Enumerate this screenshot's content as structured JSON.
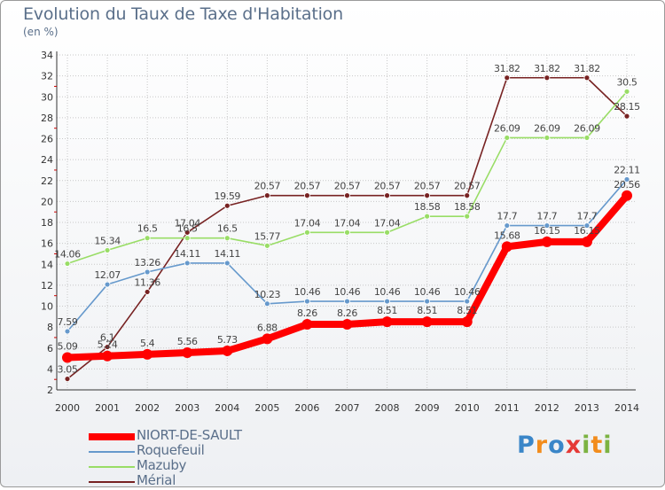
{
  "chart_data": {
    "type": "line",
    "title": "Evolution du Taux de Taxe d'Habitation",
    "ylabel": "(en %)",
    "x": [
      "2000",
      "2001",
      "2002",
      "2003",
      "2004",
      "2005",
      "2006",
      "2007",
      "2008",
      "2009",
      "2010",
      "2011",
      "2012",
      "2013",
      "2014"
    ],
    "ylim": [
      2,
      34
    ],
    "yticks": [
      2,
      4,
      6,
      8,
      10,
      12,
      14,
      16,
      18,
      20,
      22,
      24,
      26,
      28,
      30,
      32,
      34
    ],
    "grid": true,
    "legend": "bottom-left",
    "series": [
      {
        "name": "NIORT-DE-SAULT",
        "color": "#ff0000",
        "values": [
          5.09,
          5.24,
          5.4,
          5.56,
          5.73,
          6.88,
          8.26,
          8.26,
          8.51,
          8.51,
          8.51,
          15.68,
          16.15,
          16.15,
          20.56
        ],
        "labels": [
          "5.09",
          "5.24",
          "5.4",
          "5.56",
          "5.73",
          "6.88",
          "8.26",
          "8.26",
          "8.51",
          "8.51",
          "8.51",
          "15.68",
          "16.15",
          "16.15",
          "20.56"
        ]
      },
      {
        "name": "Roquefeuil",
        "color": "#6699cc",
        "values": [
          7.59,
          12.07,
          13.26,
          14.11,
          14.11,
          10.23,
          10.46,
          10.46,
          10.46,
          10.46,
          10.46,
          17.7,
          17.7,
          17.7,
          22.11
        ],
        "labels": [
          "7.59",
          "12.07",
          "13.26",
          "14.11",
          "14.11",
          "10.23",
          "10.46",
          "10.46",
          "10.46",
          "10.46",
          "10.46",
          "17.7",
          "17.7",
          "17.7",
          "22.11"
        ]
      },
      {
        "name": "Mazuby",
        "color": "#99dd66",
        "values": [
          14.06,
          15.34,
          16.5,
          16.5,
          16.5,
          15.77,
          17.04,
          17.04,
          17.04,
          18.58,
          18.58,
          26.09,
          26.09,
          26.09,
          30.5
        ],
        "labels": [
          "14.06",
          "15.34",
          "16.5",
          "16.5",
          "16.5",
          "15.77",
          "17.04",
          "17.04",
          "17.04",
          "18.58",
          "18.58",
          "26.09",
          "26.09",
          "26.09",
          "30.5"
        ]
      },
      {
        "name": "Mérial",
        "color": "#772222",
        "values": [
          3.05,
          6.1,
          11.36,
          17.04,
          19.59,
          20.57,
          20.57,
          20.57,
          20.57,
          20.57,
          20.57,
          31.82,
          31.82,
          31.82,
          28.15
        ],
        "labels": [
          "3.05",
          "6.1",
          "11.36",
          "17.04",
          "19.59",
          "20.57",
          "20.57",
          "20.57",
          "20.57",
          "20.57",
          "20.57",
          "31.82",
          "31.82",
          "31.82",
          "28.15"
        ]
      }
    ]
  },
  "logo": {
    "letters": [
      "P",
      "r",
      "o",
      "x",
      "i",
      "t",
      "i"
    ],
    "colors": [
      "#3a86c8",
      "#f28c1c",
      "#3a86c8",
      "#e53935",
      "#7cb342",
      "#f28c1c",
      "#7cb342"
    ]
  }
}
